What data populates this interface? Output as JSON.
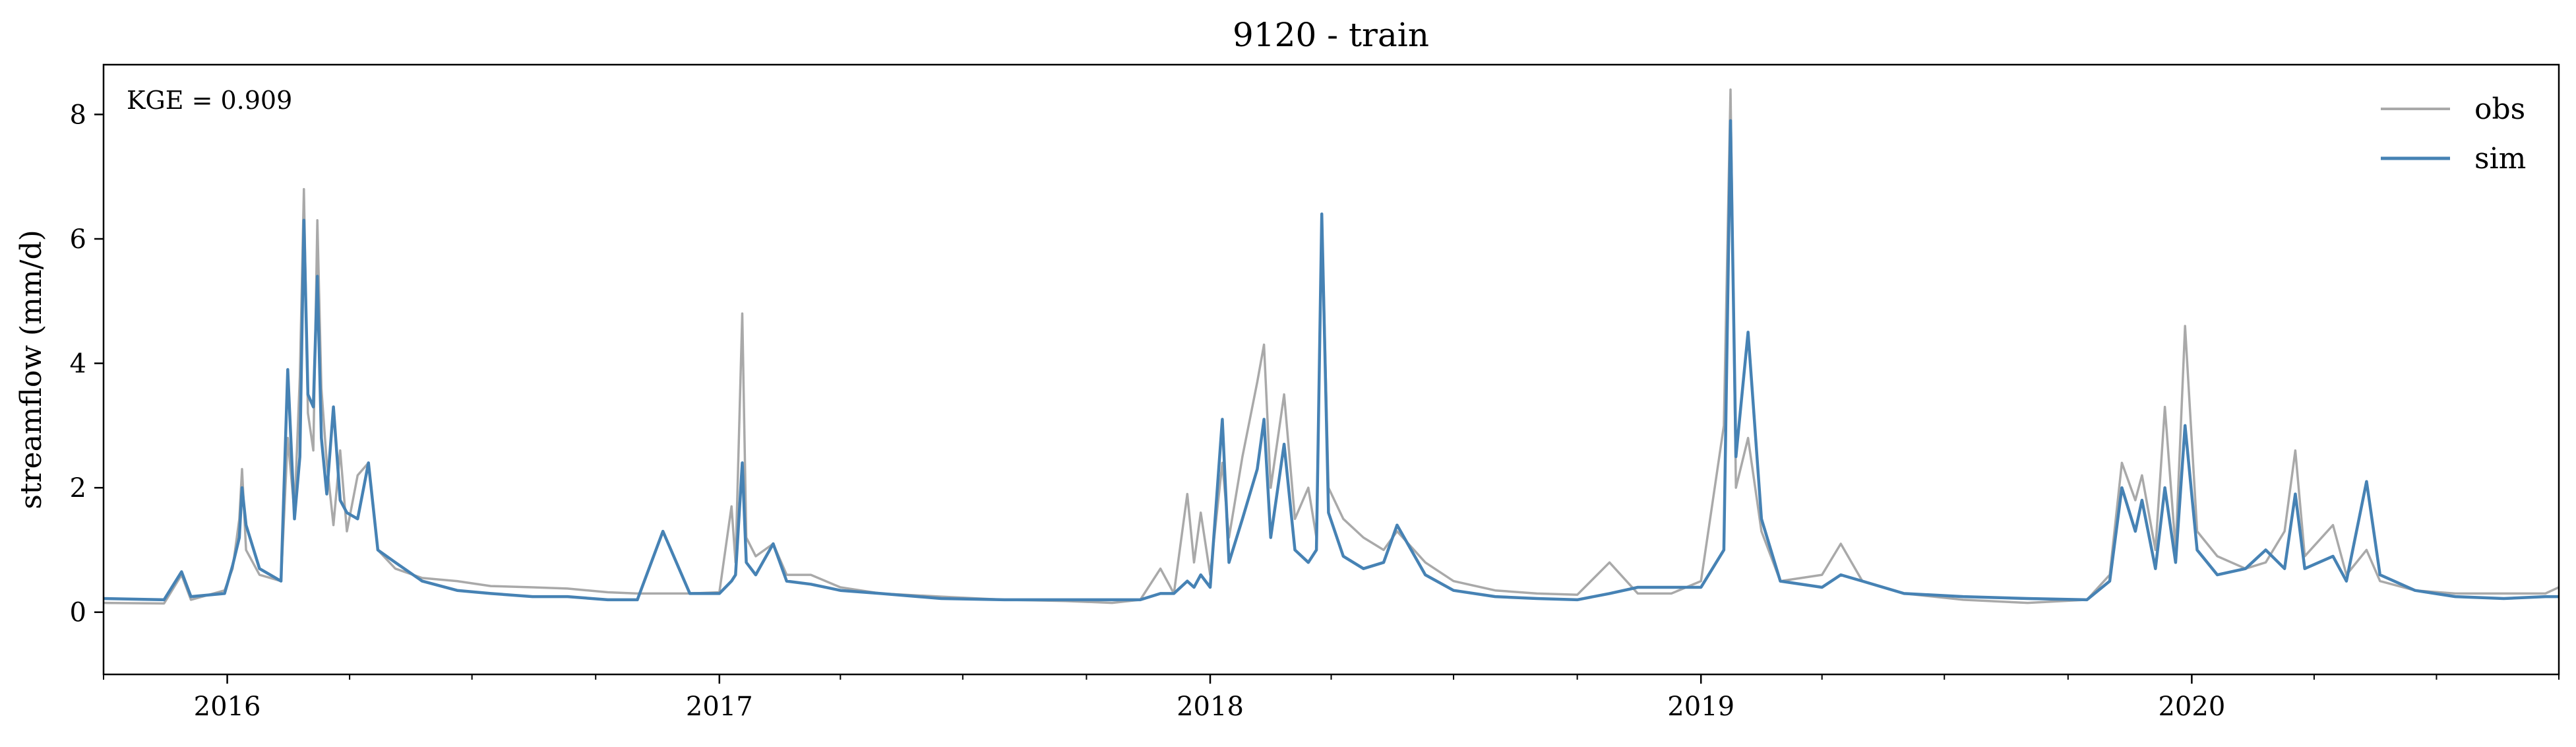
{
  "chart_data": {
    "type": "line",
    "title": "9120 - train",
    "xlabel": "",
    "ylabel": "streamflow (mm/d)",
    "annotation": "KGE = 0.909",
    "xlim": [
      "2015-10-01",
      "2020-09-30"
    ],
    "ylim": [
      -1,
      8.8
    ],
    "x_ticks": [
      {
        "label": "2016",
        "date": "2016-01-01"
      },
      {
        "label": "2017",
        "date": "2017-01-01"
      },
      {
        "label": "2018",
        "date": "2018-01-01"
      },
      {
        "label": "2019",
        "date": "2019-01-01"
      },
      {
        "label": "2020",
        "date": "2020-01-01"
      }
    ],
    "x_minor_ticks": [
      "2015-10-01",
      "2016-04-01",
      "2016-07-01",
      "2016-10-01",
      "2017-04-01",
      "2017-07-01",
      "2017-10-01",
      "2018-04-01",
      "2018-07-01",
      "2018-10-01",
      "2019-04-01",
      "2019-07-01",
      "2019-10-01",
      "2020-04-01",
      "2020-07-01",
      "2020-09-30"
    ],
    "y_ticks": [
      0,
      2,
      4,
      6,
      8
    ],
    "grid": false,
    "legend": "top-right",
    "series": [
      {
        "name": "obs",
        "color": "#a9a9a9",
        "points": [
          [
            "2015-10-01",
            0.15
          ],
          [
            "2015-11-15",
            0.14
          ],
          [
            "2015-11-28",
            0.6
          ],
          [
            "2015-12-05",
            0.2
          ],
          [
            "2015-12-30",
            0.35
          ],
          [
            "2016-01-05",
            0.7
          ],
          [
            "2016-01-10",
            1.5
          ],
          [
            "2016-01-12",
            2.3
          ],
          [
            "2016-01-15",
            1.0
          ],
          [
            "2016-01-25",
            0.6
          ],
          [
            "2016-02-10",
            0.5
          ],
          [
            "2016-02-15",
            2.8
          ],
          [
            "2016-02-20",
            1.6
          ],
          [
            "2016-02-24",
            3.8
          ],
          [
            "2016-02-27",
            6.8
          ],
          [
            "2016-03-01",
            3.2
          ],
          [
            "2016-03-05",
            2.6
          ],
          [
            "2016-03-08",
            6.3
          ],
          [
            "2016-03-11",
            3.6
          ],
          [
            "2016-03-15",
            2.4
          ],
          [
            "2016-03-20",
            1.4
          ],
          [
            "2016-03-25",
            2.6
          ],
          [
            "2016-03-30",
            1.3
          ],
          [
            "2016-04-07",
            2.2
          ],
          [
            "2016-04-15",
            2.4
          ],
          [
            "2016-04-22",
            1.0
          ],
          [
            "2016-05-05",
            0.7
          ],
          [
            "2016-05-25",
            0.55
          ],
          [
            "2016-06-20",
            0.5
          ],
          [
            "2016-07-15",
            0.42
          ],
          [
            "2016-08-15",
            0.4
          ],
          [
            "2016-09-10",
            0.38
          ],
          [
            "2016-10-10",
            0.32
          ],
          [
            "2016-11-01",
            0.3
          ],
          [
            "2016-11-20",
            0.3
          ],
          [
            "2016-12-10",
            0.3
          ],
          [
            "2017-01-01",
            0.32
          ],
          [
            "2017-01-10",
            1.7
          ],
          [
            "2017-01-13",
            0.8
          ],
          [
            "2017-01-18",
            4.8
          ],
          [
            "2017-01-21",
            1.2
          ],
          [
            "2017-01-28",
            0.9
          ],
          [
            "2017-02-10",
            1.1
          ],
          [
            "2017-02-20",
            0.6
          ],
          [
            "2017-03-10",
            0.6
          ],
          [
            "2017-04-01",
            0.4
          ],
          [
            "2017-05-01",
            0.3
          ],
          [
            "2017-06-15",
            0.25
          ],
          [
            "2017-08-01",
            0.2
          ],
          [
            "2017-09-15",
            0.18
          ],
          [
            "2017-10-20",
            0.15
          ],
          [
            "2017-11-10",
            0.2
          ],
          [
            "2017-11-25",
            0.7
          ],
          [
            "2017-12-05",
            0.3
          ],
          [
            "2017-12-15",
            1.9
          ],
          [
            "2017-12-20",
            0.8
          ],
          [
            "2017-12-25",
            1.6
          ],
          [
            "2018-01-01",
            0.6
          ],
          [
            "2018-01-10",
            2.4
          ],
          [
            "2018-01-15",
            1.2
          ],
          [
            "2018-01-25",
            2.5
          ],
          [
            "2018-02-05",
            3.7
          ],
          [
            "2018-02-10",
            4.3
          ],
          [
            "2018-02-15",
            2.0
          ],
          [
            "2018-02-25",
            3.5
          ],
          [
            "2018-03-05",
            1.5
          ],
          [
            "2018-03-15",
            2.0
          ],
          [
            "2018-03-21",
            1.2
          ],
          [
            "2018-03-25",
            6.4
          ],
          [
            "2018-03-30",
            2.0
          ],
          [
            "2018-04-10",
            1.5
          ],
          [
            "2018-04-25",
            1.2
          ],
          [
            "2018-05-10",
            1.0
          ],
          [
            "2018-05-20",
            1.3
          ],
          [
            "2018-06-10",
            0.8
          ],
          [
            "2018-07-01",
            0.5
          ],
          [
            "2018-08-01",
            0.35
          ],
          [
            "2018-09-01",
            0.3
          ],
          [
            "2018-10-01",
            0.28
          ],
          [
            "2018-10-25",
            0.8
          ],
          [
            "2018-11-15",
            0.3
          ],
          [
            "2018-12-10",
            0.3
          ],
          [
            "2019-01-01",
            0.5
          ],
          [
            "2019-01-18",
            3.0
          ],
          [
            "2019-01-23",
            8.4
          ],
          [
            "2019-01-27",
            2.0
          ],
          [
            "2019-02-05",
            2.8
          ],
          [
            "2019-02-15",
            1.3
          ],
          [
            "2019-03-01",
            0.5
          ],
          [
            "2019-04-01",
            0.6
          ],
          [
            "2019-04-15",
            1.1
          ],
          [
            "2019-05-01",
            0.5
          ],
          [
            "2019-06-01",
            0.3
          ],
          [
            "2019-07-15",
            0.2
          ],
          [
            "2019-09-01",
            0.15
          ],
          [
            "2019-10-15",
            0.2
          ],
          [
            "2019-11-01",
            0.6
          ],
          [
            "2019-11-10",
            2.4
          ],
          [
            "2019-11-20",
            1.8
          ],
          [
            "2019-11-25",
            2.2
          ],
          [
            "2019-12-05",
            1.0
          ],
          [
            "2019-12-12",
            3.3
          ],
          [
            "2019-12-20",
            1.0
          ],
          [
            "2019-12-27",
            4.6
          ],
          [
            "2020-01-05",
            1.3
          ],
          [
            "2020-01-20",
            0.9
          ],
          [
            "2020-02-10",
            0.7
          ],
          [
            "2020-02-25",
            0.8
          ],
          [
            "2020-03-10",
            1.3
          ],
          [
            "2020-03-18",
            2.6
          ],
          [
            "2020-03-25",
            0.9
          ],
          [
            "2020-04-15",
            1.4
          ],
          [
            "2020-04-25",
            0.6
          ],
          [
            "2020-05-10",
            1.0
          ],
          [
            "2020-05-20",
            0.5
          ],
          [
            "2020-06-15",
            0.35
          ],
          [
            "2020-07-15",
            0.3
          ],
          [
            "2020-08-20",
            0.3
          ],
          [
            "2020-09-20",
            0.3
          ],
          [
            "2020-09-30",
            0.4
          ]
        ]
      },
      {
        "name": "sim",
        "color": "#4682b4",
        "points": [
          [
            "2015-10-01",
            0.22
          ],
          [
            "2015-11-15",
            0.2
          ],
          [
            "2015-11-28",
            0.65
          ],
          [
            "2015-12-05",
            0.25
          ],
          [
            "2015-12-30",
            0.3
          ],
          [
            "2016-01-05",
            0.75
          ],
          [
            "2016-01-10",
            1.2
          ],
          [
            "2016-01-12",
            2.0
          ],
          [
            "2016-01-15",
            1.4
          ],
          [
            "2016-01-25",
            0.7
          ],
          [
            "2016-02-10",
            0.5
          ],
          [
            "2016-02-15",
            3.9
          ],
          [
            "2016-02-20",
            1.5
          ],
          [
            "2016-02-24",
            2.5
          ],
          [
            "2016-02-27",
            6.3
          ],
          [
            "2016-03-01",
            3.5
          ],
          [
            "2016-03-05",
            3.3
          ],
          [
            "2016-03-08",
            5.4
          ],
          [
            "2016-03-11",
            2.8
          ],
          [
            "2016-03-15",
            1.9
          ],
          [
            "2016-03-20",
            3.3
          ],
          [
            "2016-03-25",
            1.8
          ],
          [
            "2016-03-30",
            1.6
          ],
          [
            "2016-04-07",
            1.5
          ],
          [
            "2016-04-15",
            2.4
          ],
          [
            "2016-04-22",
            1.0
          ],
          [
            "2016-05-05",
            0.8
          ],
          [
            "2016-05-25",
            0.5
          ],
          [
            "2016-06-20",
            0.35
          ],
          [
            "2016-07-15",
            0.3
          ],
          [
            "2016-08-15",
            0.25
          ],
          [
            "2016-09-10",
            0.25
          ],
          [
            "2016-10-10",
            0.2
          ],
          [
            "2016-11-01",
            0.2
          ],
          [
            "2016-11-20",
            1.3
          ],
          [
            "2016-12-10",
            0.3
          ],
          [
            "2017-01-01",
            0.3
          ],
          [
            "2017-01-10",
            0.5
          ],
          [
            "2017-01-13",
            0.6
          ],
          [
            "2017-01-18",
            2.4
          ],
          [
            "2017-01-21",
            0.8
          ],
          [
            "2017-01-28",
            0.6
          ],
          [
            "2017-02-10",
            1.1
          ],
          [
            "2017-02-20",
            0.5
          ],
          [
            "2017-03-10",
            0.45
          ],
          [
            "2017-04-01",
            0.35
          ],
          [
            "2017-05-01",
            0.3
          ],
          [
            "2017-06-15",
            0.22
          ],
          [
            "2017-08-01",
            0.2
          ],
          [
            "2017-09-15",
            0.2
          ],
          [
            "2017-10-20",
            0.2
          ],
          [
            "2017-11-10",
            0.2
          ],
          [
            "2017-11-25",
            0.3
          ],
          [
            "2017-12-05",
            0.3
          ],
          [
            "2017-12-15",
            0.5
          ],
          [
            "2017-12-20",
            0.4
          ],
          [
            "2017-12-25",
            0.6
          ],
          [
            "2018-01-01",
            0.4
          ],
          [
            "2018-01-10",
            3.1
          ],
          [
            "2018-01-15",
            0.8
          ],
          [
            "2018-01-25",
            1.5
          ],
          [
            "2018-02-05",
            2.3
          ],
          [
            "2018-02-10",
            3.1
          ],
          [
            "2018-02-15",
            1.2
          ],
          [
            "2018-02-25",
            2.7
          ],
          [
            "2018-03-05",
            1.0
          ],
          [
            "2018-03-15",
            0.8
          ],
          [
            "2018-03-21",
            1.0
          ],
          [
            "2018-03-25",
            6.4
          ],
          [
            "2018-03-30",
            1.6
          ],
          [
            "2018-04-10",
            0.9
          ],
          [
            "2018-04-25",
            0.7
          ],
          [
            "2018-05-10",
            0.8
          ],
          [
            "2018-05-20",
            1.4
          ],
          [
            "2018-06-10",
            0.6
          ],
          [
            "2018-07-01",
            0.35
          ],
          [
            "2018-08-01",
            0.25
          ],
          [
            "2018-09-01",
            0.22
          ],
          [
            "2018-10-01",
            0.2
          ],
          [
            "2018-10-25",
            0.3
          ],
          [
            "2018-11-15",
            0.4
          ],
          [
            "2018-12-10",
            0.4
          ],
          [
            "2019-01-01",
            0.4
          ],
          [
            "2019-01-18",
            1.0
          ],
          [
            "2019-01-23",
            7.9
          ],
          [
            "2019-01-27",
            2.5
          ],
          [
            "2019-02-05",
            4.5
          ],
          [
            "2019-02-15",
            1.5
          ],
          [
            "2019-03-01",
            0.5
          ],
          [
            "2019-04-01",
            0.4
          ],
          [
            "2019-04-15",
            0.6
          ],
          [
            "2019-05-01",
            0.5
          ],
          [
            "2019-06-01",
            0.3
          ],
          [
            "2019-07-15",
            0.25
          ],
          [
            "2019-09-01",
            0.22
          ],
          [
            "2019-10-15",
            0.2
          ],
          [
            "2019-11-01",
            0.5
          ],
          [
            "2019-11-10",
            2.0
          ],
          [
            "2019-11-20",
            1.3
          ],
          [
            "2019-11-25",
            1.8
          ],
          [
            "2019-12-05",
            0.7
          ],
          [
            "2019-12-12",
            2.0
          ],
          [
            "2019-12-20",
            0.8
          ],
          [
            "2019-12-27",
            3.0
          ],
          [
            "2020-01-05",
            1.0
          ],
          [
            "2020-01-20",
            0.6
          ],
          [
            "2020-02-10",
            0.7
          ],
          [
            "2020-02-25",
            1.0
          ],
          [
            "2020-03-10",
            0.7
          ],
          [
            "2020-03-18",
            1.9
          ],
          [
            "2020-03-25",
            0.7
          ],
          [
            "2020-04-15",
            0.9
          ],
          [
            "2020-04-25",
            0.5
          ],
          [
            "2020-05-10",
            2.1
          ],
          [
            "2020-05-20",
            0.6
          ],
          [
            "2020-06-15",
            0.35
          ],
          [
            "2020-07-15",
            0.25
          ],
          [
            "2020-08-20",
            0.22
          ],
          [
            "2020-09-20",
            0.25
          ],
          [
            "2020-09-30",
            0.25
          ]
        ]
      }
    ]
  }
}
